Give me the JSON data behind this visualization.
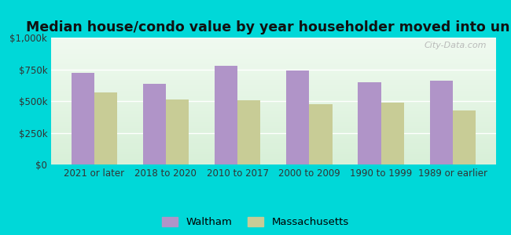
{
  "title": "Median house/condo value by year householder moved into unit",
  "categories": [
    "2021 or later",
    "2018 to 2020",
    "2010 to 2017",
    "2000 to 2009",
    "1990 to 1999",
    "1989 or earlier"
  ],
  "waltham_values": [
    720000,
    635000,
    775000,
    740000,
    650000,
    660000
  ],
  "massachusetts_values": [
    565000,
    515000,
    505000,
    475000,
    490000,
    425000
  ],
  "waltham_color": "#b094c8",
  "massachusetts_color": "#c8cc96",
  "background_color": "#00d8d8",
  "plot_bg_top": "#f0faf0",
  "plot_bg_bottom": "#d8f0d8",
  "ylim": [
    0,
    1000000
  ],
  "yticks": [
    0,
    250000,
    500000,
    750000,
    1000000
  ],
  "ytick_labels": [
    "$0",
    "$250k",
    "$500k",
    "$750k",
    "$1,000k"
  ],
  "legend_labels": [
    "Waltham",
    "Massachusetts"
  ],
  "watermark": "City-Data.com",
  "title_fontsize": 12.5,
  "tick_fontsize": 8.5,
  "legend_fontsize": 9.5
}
